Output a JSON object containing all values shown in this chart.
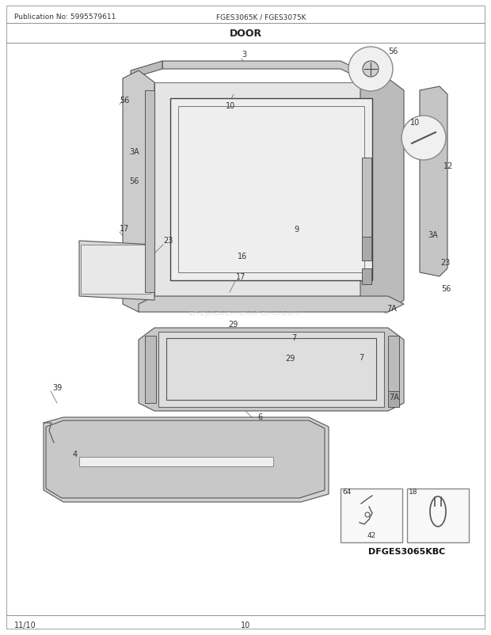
{
  "title": "DOOR",
  "pub_no": "Publication No: 5995579611",
  "model": "FGES3065K / FGES3075K",
  "sub_model": "DFGES3065KBC",
  "date": "11/10",
  "page": "10",
  "watermark": "eReplacementParts.com",
  "bg_color": "#ffffff",
  "ec": "#555555",
  "lc": "#666666",
  "labels": [
    [
      305,
      98,
      "3"
    ],
    [
      163,
      133,
      "56"
    ],
    [
      285,
      137,
      "10"
    ],
    [
      163,
      195,
      "3A"
    ],
    [
      163,
      230,
      "56"
    ],
    [
      151,
      290,
      "17"
    ],
    [
      210,
      305,
      "23"
    ],
    [
      490,
      215,
      "12"
    ],
    [
      520,
      305,
      "3A"
    ],
    [
      490,
      345,
      "23"
    ],
    [
      530,
      375,
      "56"
    ],
    [
      375,
      295,
      "9"
    ],
    [
      310,
      325,
      "16"
    ],
    [
      305,
      355,
      "17"
    ],
    [
      490,
      393,
      "7A"
    ],
    [
      290,
      415,
      "29"
    ],
    [
      370,
      430,
      "7"
    ],
    [
      360,
      458,
      "29"
    ],
    [
      455,
      455,
      "7"
    ],
    [
      490,
      505,
      "7A"
    ],
    [
      325,
      530,
      "6"
    ],
    [
      68,
      490,
      "39"
    ],
    [
      95,
      575,
      "4"
    ],
    [
      447,
      634,
      "64"
    ],
    [
      470,
      660,
      "42"
    ],
    [
      520,
      620,
      "18"
    ]
  ]
}
